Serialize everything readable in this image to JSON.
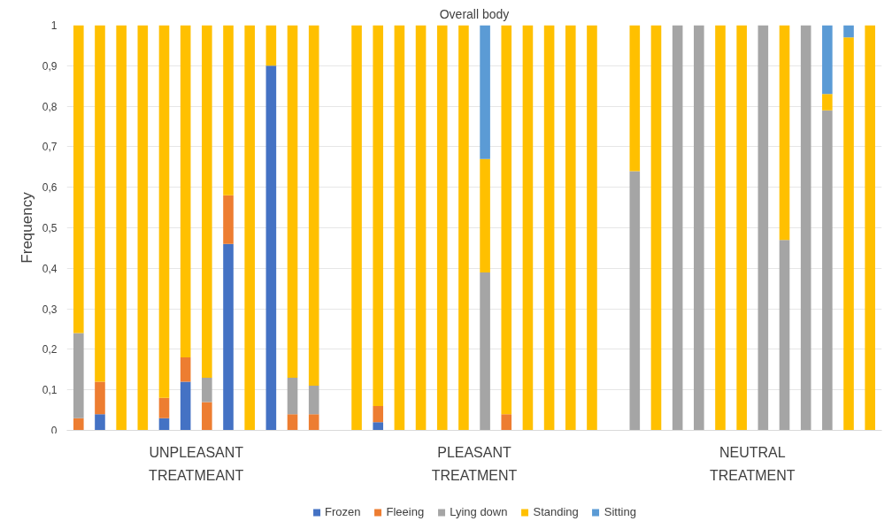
{
  "chart_data": {
    "type": "bar",
    "title": "Overall body",
    "ylabel": "Frequency",
    "stacked": true,
    "categories": [
      null,
      null,
      null,
      null,
      null,
      null,
      null,
      null,
      null,
      null,
      null,
      null,
      null,
      null,
      null,
      null,
      null,
      null,
      null,
      null,
      null,
      null,
      null,
      null,
      null,
      null,
      null,
      null,
      null,
      null,
      null,
      null,
      null,
      null,
      null,
      null,
      null,
      null
    ],
    "series": [
      {
        "name": "Frozen",
        "color": "#4472c4",
        "values": [
          0,
          0.04,
          0,
          0,
          0.03,
          0.12,
          0,
          0.46,
          0,
          0.9,
          0,
          0,
          null,
          0,
          0.02,
          0,
          0,
          0,
          0,
          0,
          0,
          0,
          0,
          0,
          0,
          null,
          0,
          0,
          0,
          0,
          0,
          0,
          0,
          0,
          0,
          0,
          0,
          0
        ]
      },
      {
        "name": "Fleeing",
        "color": "#ed7d31",
        "values": [
          0.03,
          0.08,
          0,
          0,
          0.05,
          0.06,
          0.07,
          0.12,
          0,
          0,
          0.04,
          0.04,
          null,
          0,
          0.04,
          0,
          0,
          0,
          0,
          0,
          0.04,
          0,
          0,
          0,
          0,
          null,
          0,
          0,
          0,
          0,
          0,
          0,
          0,
          0,
          0,
          0,
          0,
          0
        ]
      },
      {
        "name": "Lying down",
        "color": "#a5a5a5",
        "values": [
          0.21,
          0,
          0,
          0,
          0,
          0,
          0.06,
          0,
          0,
          0,
          0.09,
          0.07,
          null,
          0,
          0,
          0,
          0,
          0,
          0,
          0.39,
          0,
          0,
          0,
          0,
          0,
          null,
          0.64,
          0,
          1,
          1,
          0,
          0,
          1,
          0.47,
          1,
          0.79,
          0,
          0
        ]
      },
      {
        "name": "Standing",
        "color": "#ffc000",
        "values": [
          0.76,
          0.88,
          1,
          1,
          0.92,
          0.82,
          0.87,
          0.42,
          1,
          0.1,
          0.87,
          0.89,
          null,
          1,
          0.94,
          1,
          1,
          1,
          1,
          0.28,
          0.96,
          1,
          1,
          1,
          1,
          null,
          0.36,
          1,
          0,
          0,
          1,
          1,
          0,
          0.53,
          0,
          0.04,
          0.97,
          1
        ]
      },
      {
        "name": "Sitting",
        "color": "#5b9bd5",
        "values": [
          0,
          0,
          0,
          0,
          0,
          0,
          0,
          0,
          0,
          0,
          0,
          0,
          null,
          0,
          0,
          0,
          0,
          0,
          0,
          0.33,
          0,
          0,
          0,
          0,
          0,
          null,
          0,
          0,
          0,
          0,
          0,
          0,
          0,
          0,
          0,
          0.17,
          0.03,
          0
        ]
      }
    ],
    "ylim": [
      0,
      1
    ],
    "yticks": [
      0,
      {
        "value": 0.1,
        "label": "0,1"
      },
      {
        "value": 0.2,
        "label": "0,2"
      },
      {
        "value": 0.3,
        "label": "0,3"
      },
      {
        "value": 0.4,
        "label": "0,4"
      },
      {
        "value": 0.5,
        "label": "0,5"
      },
      {
        "value": 0.6,
        "label": "0,6"
      },
      {
        "value": 0.7,
        "label": "0,7"
      },
      {
        "value": 0.8,
        "label": "0,8"
      },
      {
        "value": 0.9,
        "label": "0,9"
      },
      1
    ],
    "grid": "y",
    "legend": "bottom",
    "annotations": [
      "UNPLEASANT\nTREATMEANT",
      "PLEASANT\nTREATMENT",
      "NEUTRAL\nTREATMENT"
    ]
  }
}
